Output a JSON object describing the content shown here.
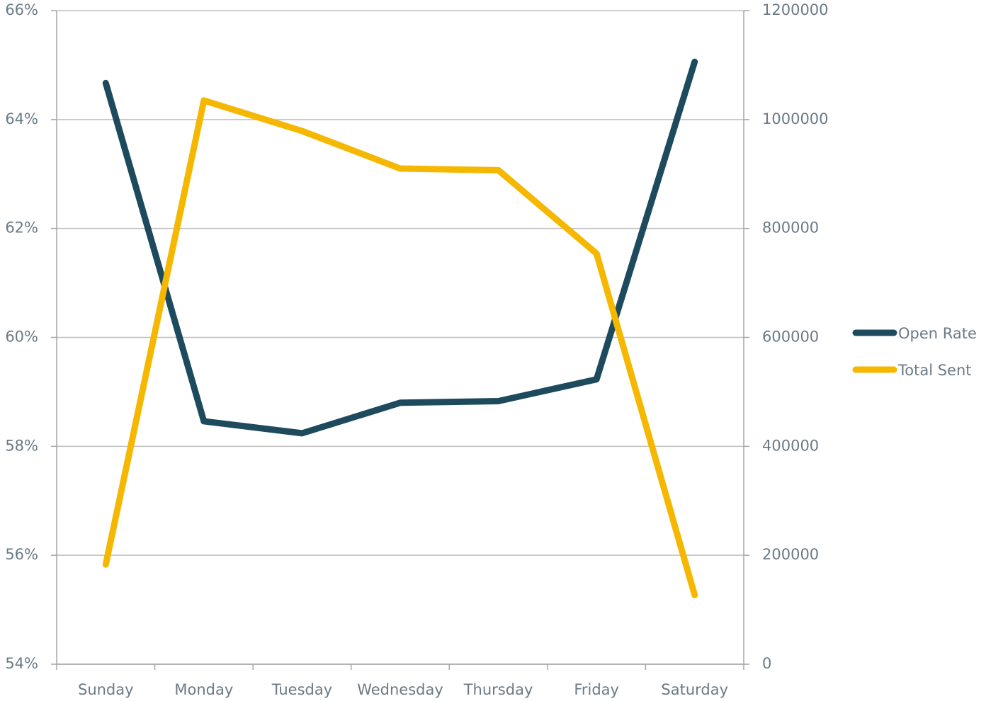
{
  "chart_data": {
    "type": "line",
    "categories": [
      "Sunday",
      "Monday",
      "Tuesday",
      "Wednesday",
      "Thursday",
      "Friday",
      "Saturday"
    ],
    "series": [
      {
        "name": "Open Rate",
        "color": "#1d4a5c",
        "values": [
          64.67,
          58.46,
          58.24,
          58.8,
          58.83,
          59.23,
          65.06
        ]
      },
      {
        "name": "Total Sent",
        "color": "#f5b700",
        "axis": "y2",
        "values": [
          183000,
          1035000,
          979000,
          910000,
          907000,
          754000,
          127000
        ]
      }
    ],
    "ylim": [
      54,
      66
    ],
    "yticks": [
      {
        "value": 54,
        "label": "54%"
      },
      {
        "value": 56,
        "label": "56%"
      },
      {
        "value": 58,
        "label": "58%"
      },
      {
        "value": 60,
        "label": "60%"
      },
      {
        "value": 62,
        "label": "62%"
      },
      {
        "value": 64,
        "label": "64%"
      },
      {
        "value": 66,
        "label": "66%"
      }
    ],
    "y2lim": [
      0,
      1200000
    ],
    "y2ticks": [
      0,
      200000,
      400000,
      600000,
      800000,
      1000000,
      1200000
    ],
    "grid": true,
    "legend": "right"
  }
}
